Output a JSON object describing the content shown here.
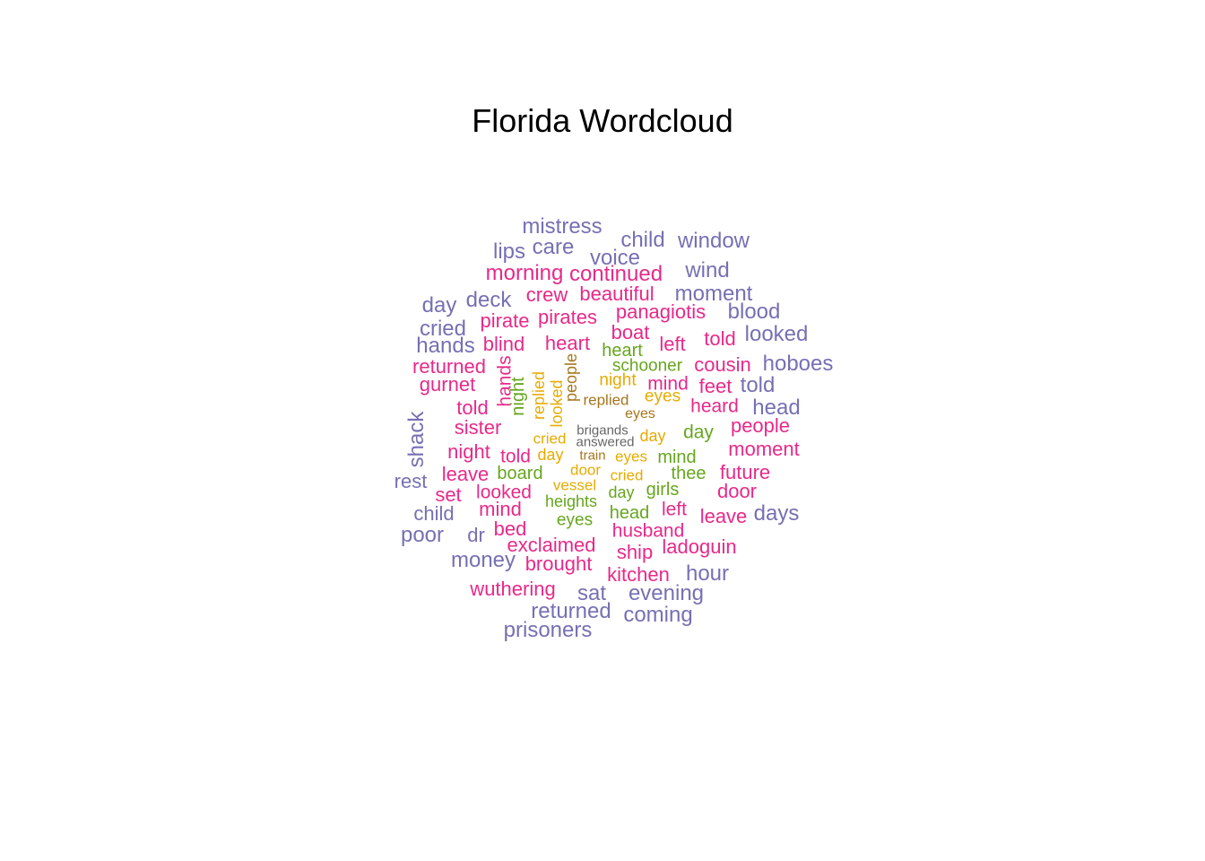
{
  "chart_data": {
    "type": "wordcloud",
    "title": "Florida Wordcloud",
    "colors": {
      "tier1": "#7570b3",
      "tier2": "#e7298a",
      "tier3": "#66a61e",
      "tier4": "#e6ab02",
      "tier5": "#a6761d",
      "tier6": "#666666"
    },
    "words": [
      {
        "text": "mistress",
        "tier": 1
      },
      {
        "text": "child",
        "tier": 1
      },
      {
        "text": "window",
        "tier": 1
      },
      {
        "text": "lips",
        "tier": 1
      },
      {
        "text": "care",
        "tier": 1
      },
      {
        "text": "voice",
        "tier": 1
      },
      {
        "text": "morning",
        "tier": 2
      },
      {
        "text": "continued",
        "tier": 2
      },
      {
        "text": "wind",
        "tier": 1
      },
      {
        "text": "day",
        "tier": 1
      },
      {
        "text": "deck",
        "tier": 1
      },
      {
        "text": "crew",
        "tier": 2
      },
      {
        "text": "beautiful",
        "tier": 2
      },
      {
        "text": "moment",
        "tier": 1
      },
      {
        "text": "panagiotis",
        "tier": 2
      },
      {
        "text": "blood",
        "tier": 1
      },
      {
        "text": "cried",
        "tier": 1
      },
      {
        "text": "pirate",
        "tier": 2
      },
      {
        "text": "pirates",
        "tier": 2
      },
      {
        "text": "boat",
        "tier": 2
      },
      {
        "text": "told",
        "tier": 2
      },
      {
        "text": "looked",
        "tier": 1
      },
      {
        "text": "hands",
        "tier": 1
      },
      {
        "text": "blind",
        "tier": 2
      },
      {
        "text": "heart",
        "tier": 2
      },
      {
        "text": "heart",
        "tier": 3
      },
      {
        "text": "left",
        "tier": 2
      },
      {
        "text": "returned",
        "tier": 2
      },
      {
        "text": "schooner",
        "tier": 3
      },
      {
        "text": "cousin",
        "tier": 2
      },
      {
        "text": "hoboes",
        "tier": 1
      },
      {
        "text": "gurnet",
        "tier": 2
      },
      {
        "text": "hands",
        "tier": 2,
        "vertical": true
      },
      {
        "text": "night",
        "tier": 3,
        "vertical": true
      },
      {
        "text": "replied",
        "tier": 4,
        "vertical": true
      },
      {
        "text": "looked",
        "tier": 4,
        "vertical": true
      },
      {
        "text": "people",
        "tier": 5,
        "vertical": true
      },
      {
        "text": "night",
        "tier": 4
      },
      {
        "text": "mind",
        "tier": 2
      },
      {
        "text": "feet",
        "tier": 2
      },
      {
        "text": "told",
        "tier": 1
      },
      {
        "text": "told",
        "tier": 2
      },
      {
        "text": "replied",
        "tier": 5
      },
      {
        "text": "eyes",
        "tier": 4
      },
      {
        "text": "heard",
        "tier": 2
      },
      {
        "text": "head",
        "tier": 1
      },
      {
        "text": "eyes",
        "tier": 5
      },
      {
        "text": "shack",
        "tier": 1,
        "vertical": true
      },
      {
        "text": "sister",
        "tier": 2
      },
      {
        "text": "brigands",
        "tier": 6
      },
      {
        "text": "people",
        "tier": 2
      },
      {
        "text": "cried",
        "tier": 4
      },
      {
        "text": "answered",
        "tier": 6
      },
      {
        "text": "day",
        "tier": 4
      },
      {
        "text": "day",
        "tier": 3
      },
      {
        "text": "night",
        "tier": 2
      },
      {
        "text": "told",
        "tier": 2
      },
      {
        "text": "day",
        "tier": 4
      },
      {
        "text": "train",
        "tier": 5
      },
      {
        "text": "eyes",
        "tier": 4
      },
      {
        "text": "mind",
        "tier": 3
      },
      {
        "text": "moment",
        "tier": 2
      },
      {
        "text": "leave",
        "tier": 2
      },
      {
        "text": "board",
        "tier": 3
      },
      {
        "text": "door",
        "tier": 4
      },
      {
        "text": "cried",
        "tier": 4
      },
      {
        "text": "thee",
        "tier": 3
      },
      {
        "text": "future",
        "tier": 2
      },
      {
        "text": "rest",
        "tier": 1
      },
      {
        "text": "vessel",
        "tier": 4
      },
      {
        "text": "set",
        "tier": 2
      },
      {
        "text": "looked",
        "tier": 2
      },
      {
        "text": "day",
        "tier": 3
      },
      {
        "text": "girls",
        "tier": 3
      },
      {
        "text": "door",
        "tier": 2
      },
      {
        "text": "heights",
        "tier": 3
      },
      {
        "text": "child",
        "tier": 1
      },
      {
        "text": "mind",
        "tier": 2
      },
      {
        "text": "head",
        "tier": 3
      },
      {
        "text": "left",
        "tier": 2
      },
      {
        "text": "leave",
        "tier": 2
      },
      {
        "text": "days",
        "tier": 1
      },
      {
        "text": "eyes",
        "tier": 3
      },
      {
        "text": "poor",
        "tier": 1
      },
      {
        "text": "dr",
        "tier": 1
      },
      {
        "text": "bed",
        "tier": 2
      },
      {
        "text": "husband",
        "tier": 2
      },
      {
        "text": "exclaimed",
        "tier": 2
      },
      {
        "text": "ship",
        "tier": 2
      },
      {
        "text": "ladoguin",
        "tier": 2
      },
      {
        "text": "money",
        "tier": 1
      },
      {
        "text": "brought",
        "tier": 2
      },
      {
        "text": "kitchen",
        "tier": 2
      },
      {
        "text": "hour",
        "tier": 1
      },
      {
        "text": "wuthering",
        "tier": 2
      },
      {
        "text": "sat",
        "tier": 1
      },
      {
        "text": "evening",
        "tier": 1
      },
      {
        "text": "returned",
        "tier": 1
      },
      {
        "text": "coming",
        "tier": 1
      },
      {
        "text": "prisoners",
        "tier": 1
      }
    ]
  }
}
